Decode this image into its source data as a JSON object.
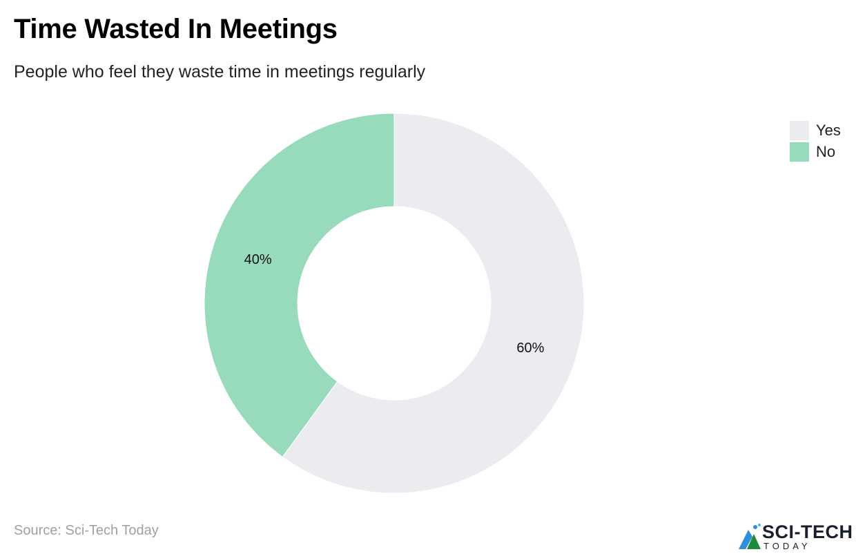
{
  "header": {
    "title": "Time Wasted In Meetings",
    "subtitle": "People who feel they waste time in meetings regularly"
  },
  "chart_data": {
    "type": "pie",
    "donut": true,
    "title": "Time Wasted In Meetings",
    "subtitle": "People who feel they waste time in meetings regularly",
    "categories": [
      "Yes",
      "No"
    ],
    "values": [
      60,
      40
    ],
    "labels": [
      "60%",
      "40%"
    ],
    "colors": [
      "#ebecf0",
      "#98dbbc"
    ],
    "legend_position": "top-right"
  },
  "footer": {
    "source": "Source: Sci-Tech Today",
    "logo_text": "SCI-TECH",
    "logo_sub": "TODAY"
  }
}
